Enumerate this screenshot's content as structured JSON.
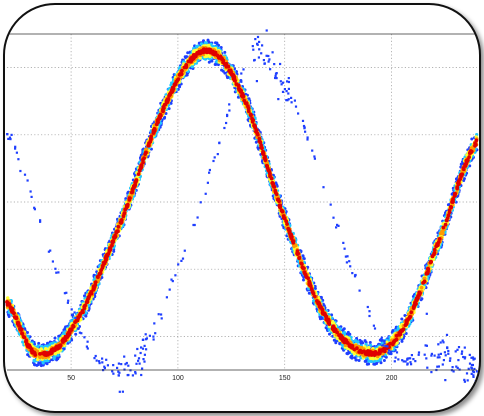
{
  "chart_data": {
    "type": "scatter",
    "title": "",
    "xlabel": "",
    "ylabel": "",
    "xlim": [
      20,
      240
    ],
    "ylim": [
      0,
      1
    ],
    "grid": true,
    "xticks": [
      50,
      100,
      150,
      200
    ],
    "xtick_labels": [
      "50",
      "100",
      "150",
      "200"
    ],
    "yticks": [
      0.1,
      0.3,
      0.5,
      0.7,
      0.9
    ],
    "colormap": "jet",
    "colors": {
      "low": "#1f3fff",
      "mid_low": "#20c8ff",
      "mid": "#ffff33",
      "mid_high": "#ff9a00",
      "high": "#e00000"
    },
    "series": [
      {
        "kind": "density-band",
        "curve": "sinusoid",
        "x": [
          20,
          33,
          50,
          72,
          95,
          113,
          130,
          150,
          170,
          190,
          205,
          220,
          240
        ],
        "y": [
          0.2,
          0.05,
          0.12,
          0.42,
          0.8,
          0.95,
          0.82,
          0.45,
          0.15,
          0.05,
          0.12,
          0.35,
          0.68
        ],
        "band_width": 0.07
      },
      {
        "kind": "sparse-points",
        "curve": "sinusoid",
        "x": [
          20,
          40,
          60,
          80,
          100,
          115,
          130,
          141,
          160,
          180,
          200,
          220,
          240
        ],
        "y": [
          0.7,
          0.35,
          0.05,
          0.02,
          0.3,
          0.58,
          0.88,
          0.93,
          0.7,
          0.32,
          0.05,
          0.04,
          0.02
        ]
      }
    ]
  }
}
